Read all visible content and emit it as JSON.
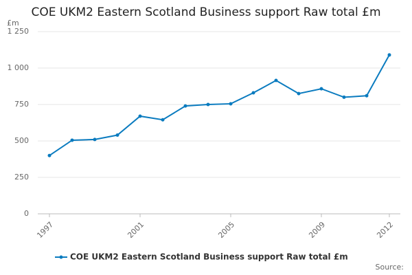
{
  "chart_data": {
    "type": "line",
    "title": "COE UKM2 Eastern Scotland Business support Raw total £m",
    "y_unit": "£m",
    "source": "Source:",
    "x": [
      1997,
      1998,
      1999,
      2000,
      2001,
      2002,
      2003,
      2004,
      2005,
      2006,
      2007,
      2008,
      2009,
      2010,
      2011,
      2012
    ],
    "series": [
      {
        "name": "COE UKM2 Eastern Scotland Business support Raw total £m",
        "color": "#0a7bbf",
        "values": [
          400,
          505,
          510,
          540,
          670,
          645,
          740,
          750,
          755,
          830,
          915,
          825,
          858,
          800,
          810,
          1090
        ]
      }
    ],
    "xlim": [
      1997,
      2012
    ],
    "xticks": [
      1997,
      2001,
      2005,
      2009,
      2012
    ],
    "ylim": [
      0,
      1250
    ],
    "yticks": [
      0,
      250,
      500,
      750,
      {
        "value": 1000,
        "label": "1 000"
      },
      {
        "value": 1250,
        "label": "1 250"
      }
    ],
    "grid": true
  }
}
